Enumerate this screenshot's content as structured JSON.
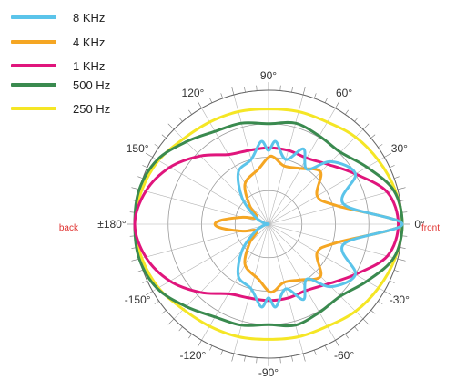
{
  "chart_data": {
    "type": "polar",
    "angle_labels": [
      "0°",
      "30°",
      "60°",
      "90°",
      "120°",
      "150°",
      "±180°",
      "-150°",
      "-120°",
      "-90°",
      "-60°",
      "-30°"
    ],
    "angle_label_degrees": [
      0,
      30,
      60,
      90,
      120,
      150,
      180,
      -150,
      -120,
      -90,
      -60,
      -30
    ],
    "side_labels": {
      "front": "front",
      "back": "back"
    },
    "side_label_color": "#e0312f",
    "r_range": [
      0,
      1
    ],
    "rings": 4,
    "grid": true,
    "legend_position": "top-left",
    "series": [
      {
        "name": "8  KHz",
        "color": "#5bc4ea",
        "angles": [
          0,
          15,
          30,
          45,
          55,
          65,
          75,
          85,
          90,
          95,
          105,
          120,
          135,
          150,
          165,
          180
        ],
        "radius": [
          1.0,
          0.58,
          0.75,
          0.66,
          0.5,
          0.62,
          0.5,
          0.62,
          0.55,
          0.62,
          0.5,
          0.45,
          0.28,
          0.12,
          0.04,
          0.0
        ]
      },
      {
        "name": "4  KHz",
        "color": "#f5a623",
        "angles": [
          0,
          15,
          30,
          45,
          60,
          75,
          85,
          90,
          100,
          120,
          135,
          150,
          165,
          175,
          180
        ],
        "radius": [
          1.0,
          0.53,
          0.42,
          0.55,
          0.48,
          0.45,
          0.5,
          0.5,
          0.42,
          0.35,
          0.2,
          0.1,
          0.2,
          0.35,
          0.4
        ]
      },
      {
        "name": "1  KHz",
        "color": "#e0157c",
        "angles": [
          0,
          15,
          30,
          45,
          60,
          75,
          90,
          105,
          120,
          135,
          150,
          165,
          180
        ],
        "radius": [
          0.97,
          0.92,
          0.75,
          0.63,
          0.57,
          0.57,
          0.57,
          0.57,
          0.6,
          0.72,
          0.85,
          0.95,
          1.0
        ]
      },
      {
        "name": "500 Hz",
        "color": "#3a8a4f",
        "angles": [
          0,
          15,
          30,
          45,
          60,
          75,
          90,
          105,
          120,
          135,
          150,
          165,
          180
        ],
        "radius": [
          1.0,
          0.97,
          0.85,
          0.76,
          0.76,
          0.78,
          0.75,
          0.78,
          0.8,
          0.87,
          0.96,
          1.0,
          1.0
        ]
      },
      {
        "name": "250 Hz",
        "color": "#f5e625",
        "angles": [
          0,
          15,
          30,
          45,
          60,
          75,
          90,
          105,
          120,
          135,
          150,
          165,
          180
        ],
        "radius": [
          1.0,
          0.98,
          0.95,
          0.92,
          0.88,
          0.87,
          0.86,
          0.87,
          0.88,
          0.9,
          0.95,
          0.98,
          1.0
        ]
      }
    ]
  }
}
